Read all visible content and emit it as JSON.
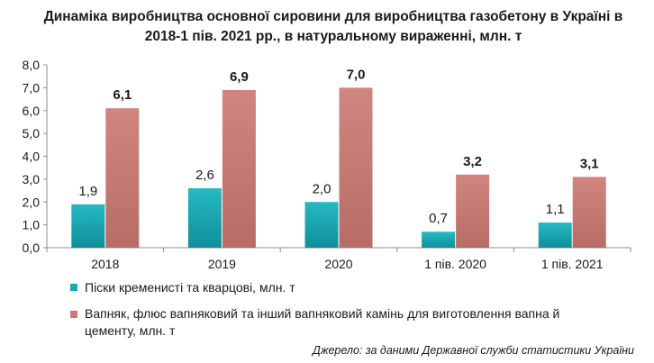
{
  "chart_data": {
    "type": "bar",
    "title": "Динаміка виробництва основної сировини для виробництва газобетону в Україні в 2018-1 пів. 2021 рр., в натуральному вираженні, млн. т",
    "categories": [
      "2018",
      "2019",
      "2020",
      "1 пів. 2020",
      "1 пів. 2021"
    ],
    "series": [
      {
        "name": "Піски кременисті та кварцові, млн. т",
        "values": [
          1.9,
          2.6,
          2.0,
          0.7,
          1.1
        ],
        "labels": [
          "1,9",
          "2,6",
          "2,0",
          "0,7",
          "1,1"
        ],
        "color": "#1aa9b3",
        "label_bold": false
      },
      {
        "name": "Вапняк, флюс вапняковий та інший вапняковий камінь для виготовлення вапна й цементу, млн. т",
        "values": [
          6.1,
          6.9,
          7.0,
          3.2,
          3.1
        ],
        "labels": [
          "6,1",
          "6,9",
          "7,0",
          "3,2",
          "3,1"
        ],
        "color": "#c87a74",
        "label_bold": true
      }
    ],
    "ylim": [
      0,
      8
    ],
    "yticks": [
      "0,0",
      "1,0",
      "2,0",
      "3,0",
      "4,0",
      "5,0",
      "6,0",
      "7,0",
      "8,0"
    ],
    "grid": false,
    "legend_position": "bottom"
  },
  "source": "Джерело: за даними Державної служби статистики України"
}
